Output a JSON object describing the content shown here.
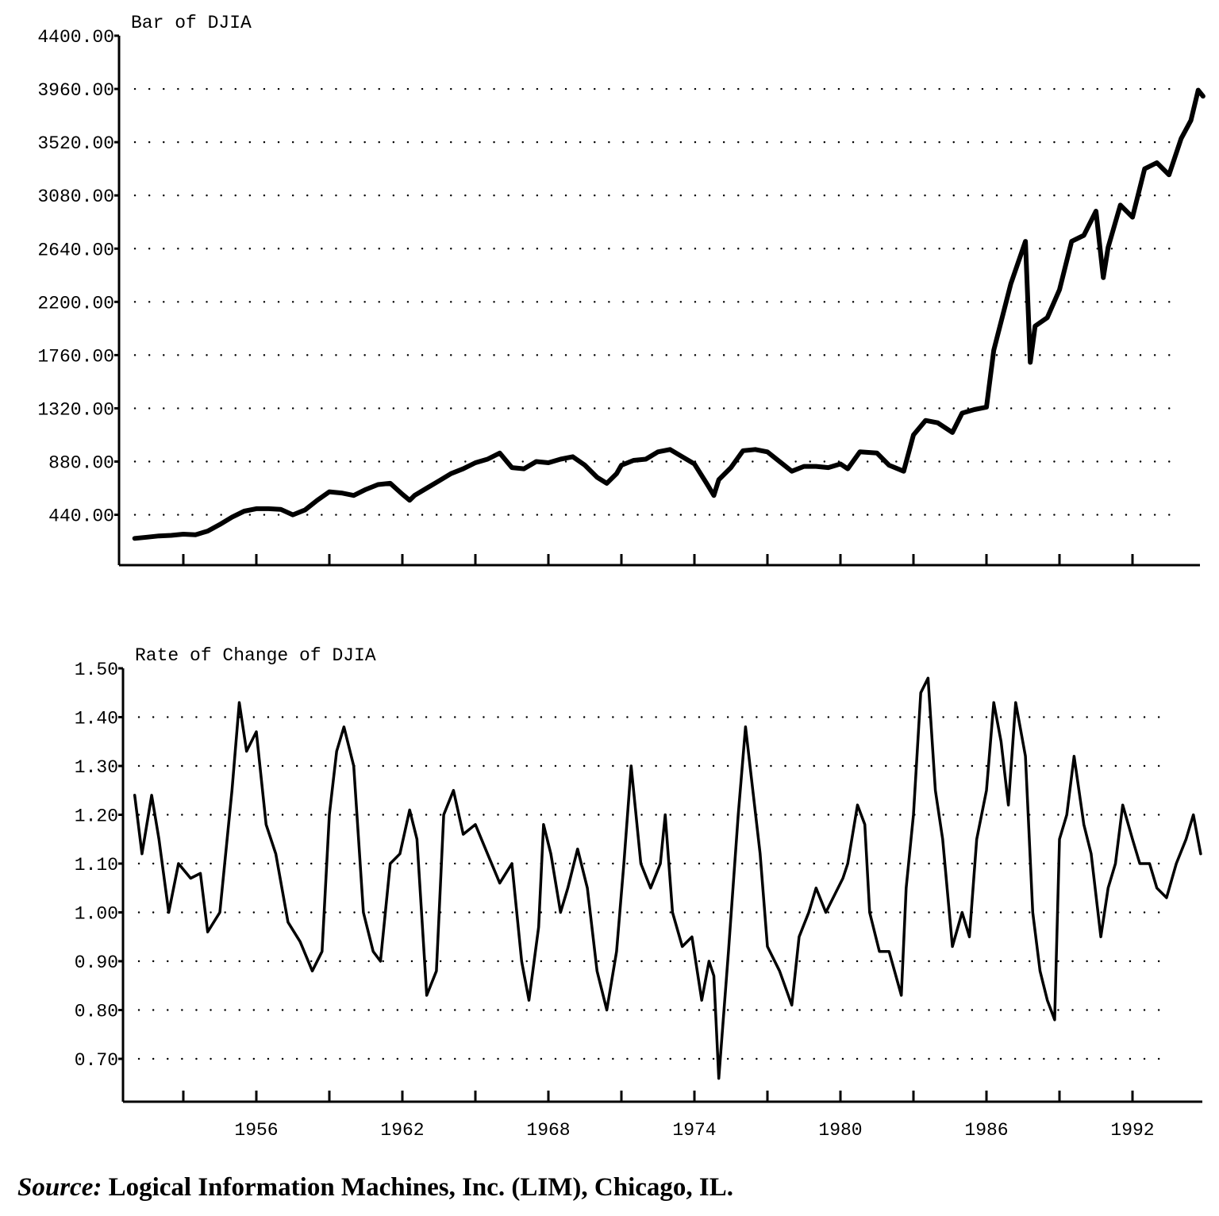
{
  "chart_data": [
    {
      "type": "line",
      "title": "Bar of DJIA",
      "xlabel": "",
      "ylabel": "",
      "x_ticks": [
        1956,
        1962,
        1968,
        1974,
        1980,
        1986,
        1992
      ],
      "y_ticks": [
        "440.00",
        "880.00",
        "1320.00",
        "1760.00",
        "2200.00",
        "2640.00",
        "3080.00",
        "3520.00",
        "3960.00",
        "4400.00"
      ],
      "ylim": [
        0,
        4400
      ],
      "xlim": [
        1950.8,
        1995.5
      ],
      "grid": true,
      "series": [
        {
          "x": [
            1951.0,
            1951.5,
            1952.0,
            1952.5,
            1953.0,
            1953.5,
            1954.0,
            1954.5,
            1955.0,
            1955.5,
            1956.0,
            1956.5,
            1957.0,
            1957.5,
            1958.0,
            1958.5,
            1959.0,
            1959.5,
            1960.0,
            1960.5,
            1961.0,
            1961.5,
            1962.0,
            1962.3,
            1962.5,
            1963.0,
            1963.5,
            1964.0,
            1964.5,
            1965.0,
            1965.5,
            1966.0,
            1966.5,
            1967.0,
            1967.5,
            1968.0,
            1968.5,
            1969.0,
            1969.5,
            1970.0,
            1970.4,
            1970.8,
            1971.0,
            1971.5,
            1972.0,
            1972.5,
            1973.0,
            1973.5,
            1974.0,
            1974.5,
            1974.8,
            1975.0,
            1975.5,
            1976.0,
            1976.5,
            1977.0,
            1977.5,
            1978.0,
            1978.5,
            1979.0,
            1979.5,
            1980.0,
            1980.3,
            1980.8,
            1981.5,
            1982.0,
            1982.6,
            1983.0,
            1983.5,
            1984.0,
            1984.6,
            1985.0,
            1985.5,
            1986.0,
            1986.3,
            1987.0,
            1987.6,
            1987.8,
            1988.0,
            1988.5,
            1989.0,
            1989.5,
            1990.0,
            1990.5,
            1990.8,
            1991.0,
            1991.5,
            1992.0,
            1992.5,
            1993.0,
            1993.5,
            1994.0,
            1994.4,
            1994.7,
            1994.9
          ],
          "y": [
            245,
            255,
            265,
            270,
            280,
            275,
            305,
            360,
            420,
            470,
            490,
            490,
            485,
            440,
            480,
            560,
            630,
            620,
            600,
            650,
            690,
            700,
            610,
            560,
            600,
            660,
            720,
            780,
            820,
            870,
            900,
            950,
            830,
            820,
            880,
            870,
            900,
            920,
            850,
            750,
            700,
            780,
            850,
            890,
            900,
            960,
            980,
            920,
            860,
            700,
            600,
            730,
            830,
            970,
            980,
            960,
            880,
            800,
            840,
            840,
            830,
            860,
            820,
            960,
            950,
            850,
            800,
            1100,
            1220,
            1200,
            1120,
            1280,
            1310,
            1330,
            1800,
            2350,
            2700,
            1700,
            2000,
            2070,
            2300,
            2700,
            2750,
            2950,
            2400,
            2650,
            3000,
            2900,
            3300,
            3350,
            3250,
            3550,
            3700,
            3950,
            3900
          ]
        }
      ]
    },
    {
      "type": "line",
      "title": "Rate of Change of DJIA",
      "xlabel": "",
      "ylabel": "",
      "x_ticks": [
        1956,
        1962,
        1968,
        1974,
        1980,
        1986,
        1992
      ],
      "y_ticks": [
        "0.70",
        "0.80",
        "0.90",
        "1.00",
        "1.10",
        "1.20",
        "1.30",
        "1.40",
        "1.50"
      ],
      "ylim": [
        0.63,
        1.5
      ],
      "xlim": [
        1950.8,
        1995.5
      ],
      "grid": true,
      "series": [
        {
          "x": [
            1951.0,
            1951.3,
            1951.7,
            1952.0,
            1952.4,
            1952.8,
            1953.3,
            1953.7,
            1954.0,
            1954.5,
            1955.0,
            1955.3,
            1955.6,
            1956.0,
            1956.4,
            1956.8,
            1957.3,
            1957.8,
            1958.3,
            1958.7,
            1959.0,
            1959.3,
            1959.6,
            1960.0,
            1960.4,
            1960.8,
            1961.1,
            1961.5,
            1961.9,
            1962.3,
            1962.6,
            1963.0,
            1963.4,
            1963.7,
            1964.1,
            1964.5,
            1965.0,
            1965.5,
            1966.0,
            1966.5,
            1966.9,
            1967.2,
            1967.6,
            1967.8,
            1968.1,
            1968.5,
            1968.8,
            1969.2,
            1969.6,
            1970.0,
            1970.4,
            1970.8,
            1971.1,
            1971.4,
            1971.8,
            1972.2,
            1972.6,
            1972.8,
            1973.1,
            1973.5,
            1973.9,
            1974.3,
            1974.6,
            1974.8,
            1975.0,
            1975.4,
            1975.8,
            1976.1,
            1976.4,
            1976.7,
            1977.0,
            1977.5,
            1978.0,
            1978.3,
            1978.7,
            1979.0,
            1979.4,
            1979.8,
            1980.1,
            1980.3,
            1980.7,
            1981.0,
            1981.2,
            1981.6,
            1982.0,
            1982.5,
            1982.7,
            1983.0,
            1983.3,
            1983.6,
            1983.9,
            1984.2,
            1984.6,
            1985.0,
            1985.3,
            1985.6,
            1986.0,
            1986.3,
            1986.6,
            1986.9,
            1987.2,
            1987.6,
            1987.9,
            1988.2,
            1988.5,
            1988.8,
            1989.0,
            1989.3,
            1989.6,
            1990.0,
            1990.3,
            1990.7,
            1991.0,
            1991.3,
            1991.6,
            1992.0,
            1992.3,
            1992.7,
            1993.0,
            1993.4,
            1993.8,
            1994.2,
            1994.5,
            1994.8
          ],
          "y": [
            1.24,
            1.12,
            1.24,
            1.15,
            1.0,
            1.1,
            1.07,
            1.08,
            0.96,
            1.0,
            1.25,
            1.43,
            1.33,
            1.37,
            1.18,
            1.12,
            0.98,
            0.94,
            0.88,
            0.92,
            1.2,
            1.33,
            1.38,
            1.3,
            1.0,
            0.92,
            0.9,
            1.1,
            1.12,
            1.21,
            1.15,
            0.83,
            0.88,
            1.2,
            1.25,
            1.16,
            1.18,
            1.12,
            1.06,
            1.1,
            0.9,
            0.82,
            0.97,
            1.18,
            1.12,
            1.0,
            1.05,
            1.13,
            1.05,
            0.88,
            0.8,
            0.92,
            1.1,
            1.3,
            1.1,
            1.05,
            1.1,
            1.2,
            1.0,
            0.93,
            0.95,
            0.82,
            0.9,
            0.87,
            0.66,
            0.92,
            1.2,
            1.38,
            1.25,
            1.12,
            0.93,
            0.88,
            0.81,
            0.95,
            1.0,
            1.05,
            1.0,
            1.04,
            1.07,
            1.1,
            1.22,
            1.18,
            1.0,
            0.92,
            0.92,
            0.83,
            1.05,
            1.2,
            1.45,
            1.48,
            1.25,
            1.15,
            0.93,
            1.0,
            0.95,
            1.15,
            1.25,
            1.43,
            1.35,
            1.22,
            1.43,
            1.32,
            1.0,
            0.88,
            0.82,
            0.78,
            1.15,
            1.2,
            1.32,
            1.18,
            1.12,
            0.95,
            1.05,
            1.1,
            1.22,
            1.15,
            1.1,
            1.1,
            1.05,
            1.03,
            1.1,
            1.15,
            1.2,
            1.12
          ]
        }
      ]
    }
  ],
  "source": {
    "lead": "Source:",
    "text": "Logical Information Machines, Inc. (LIM), Chicago, IL."
  }
}
